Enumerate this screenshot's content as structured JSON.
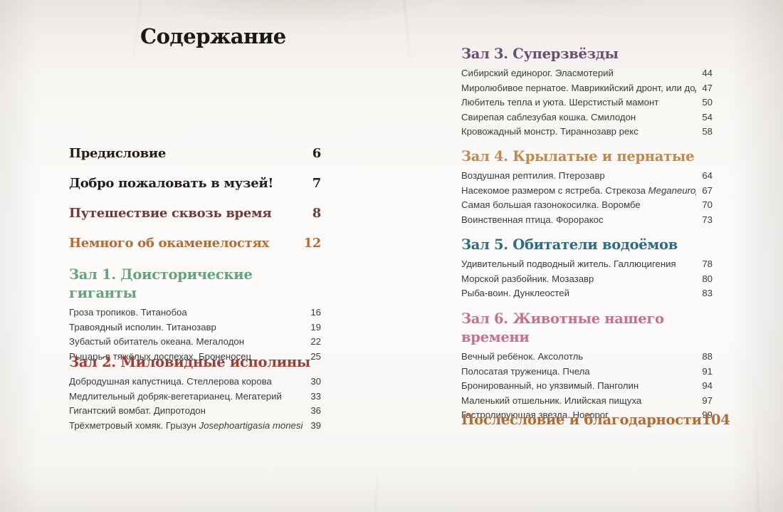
{
  "title": "Содержание",
  "colors": {
    "title": "#1b1918",
    "item_text": "#3d3b39",
    "preface": "#211e1c",
    "welcome": "#211e1c",
    "journey": "#6e3b3b",
    "fossils": "#b06d38",
    "hall1": "#67a379",
    "hall2": "#a33c34",
    "hall3": "#6b4e73",
    "hall4": "#c0894e",
    "hall5": "#2e6b85",
    "hall6": "#c4738f",
    "afterword": "#b06d38",
    "paper": "#f6f4f0"
  },
  "left": {
    "standalone": [
      {
        "label": "Предисловие",
        "page": "6",
        "color": "#211e1c"
      },
      {
        "label": "Добро пожаловать в музей!",
        "page": "7",
        "color": "#211e1c"
      },
      {
        "label": "Путешествие сквозь время",
        "page": "8",
        "color": "#6e3b3b"
      },
      {
        "label": "Немного об окаменелостях",
        "page": "12",
        "color": "#b06d38"
      }
    ],
    "sections": [
      {
        "heading": "Зал 1. Доисторические гиганты",
        "color": "#67a379",
        "items": [
          {
            "title": "Гроза тропиков. Титанобоа",
            "page": "16"
          },
          {
            "title": "Травоядный исполин. Титанозавр",
            "page": "19"
          },
          {
            "title": "Зубастый обитатель океана. Мегалодон",
            "page": "22"
          },
          {
            "title": "Рыцарь в тяжёлых доспехах. Броненосец",
            "page": "25"
          }
        ]
      },
      {
        "heading": "Зал 2. Миловидные исполины",
        "color": "#a33c34",
        "items": [
          {
            "title": "Добродушная капустница. Стеллерова корова",
            "page": "30"
          },
          {
            "title": "Медлительный добряк-вегетарианец. Мегатерий",
            "page": "33"
          },
          {
            "title": "Гигантский вомбат. Дипротодон",
            "page": "36"
          },
          {
            "title": "Трёхметровый хомяк. Грызун ",
            "italic": "Josephoartigasia monesi",
            "page": "39"
          }
        ]
      }
    ]
  },
  "right": {
    "sections": [
      {
        "heading": "Зал 3. Суперзвёзды",
        "color": "#6b4e73",
        "items": [
          {
            "title": "Сибирский единорог. Эласмотерий",
            "page": "44"
          },
          {
            "title": "Миролюбивое пернатое. Маврикийский дронт, или додо",
            "page": "47"
          },
          {
            "title": "Любитель тепла и уюта. Шерстистый мамонт",
            "page": "50"
          },
          {
            "title": "Свирепая саблезубая кошка. Смилодон",
            "page": "54"
          },
          {
            "title": "Кровожадный монстр. Тираннозавр рекс",
            "page": "58"
          }
        ]
      },
      {
        "heading": "Зал 4. Крылатые и пернатые",
        "color": "#c0894e",
        "items": [
          {
            "title": "Воздушная рептилия. Птерозавр",
            "page": "64"
          },
          {
            "title": "Насекомое размером с ястреба. Стрекоза ",
            "italic": "Meganeuropsis",
            "page": "67"
          },
          {
            "title": "Самая большая газонокосилка. Воромбе",
            "page": "70"
          },
          {
            "title": "Воинственная птица. Фороракос",
            "page": "73"
          }
        ]
      },
      {
        "heading": "Зал 5. Обитатели водоёмов",
        "color": "#2e6b85",
        "items": [
          {
            "title": "Удивительный подводный житель. Галлюцигения",
            "page": "78"
          },
          {
            "title": "Морской разбойник. Мозазавр",
            "page": "80"
          },
          {
            "title": "Рыба-воин. Дунклеостей",
            "page": "83"
          }
        ]
      },
      {
        "heading": "Зал 6. Животные нашего времени",
        "color": "#c4738f",
        "items": [
          {
            "title": "Вечный ребёнок. Аксолотль",
            "page": "88"
          },
          {
            "title": "Полосатая труженица. Пчела",
            "page": "91"
          },
          {
            "title": "Бронированный, но уязвимый. Панголин",
            "page": "94"
          },
          {
            "title": "Маленький отшельник. Илийская пищуха",
            "page": "97"
          },
          {
            "title": "Гастролирующая звезда. Носорог",
            "page": "99"
          }
        ]
      }
    ],
    "standalone": [
      {
        "label": "Послесловие и благодарности",
        "page": "104",
        "color": "#b06d38"
      }
    ]
  }
}
